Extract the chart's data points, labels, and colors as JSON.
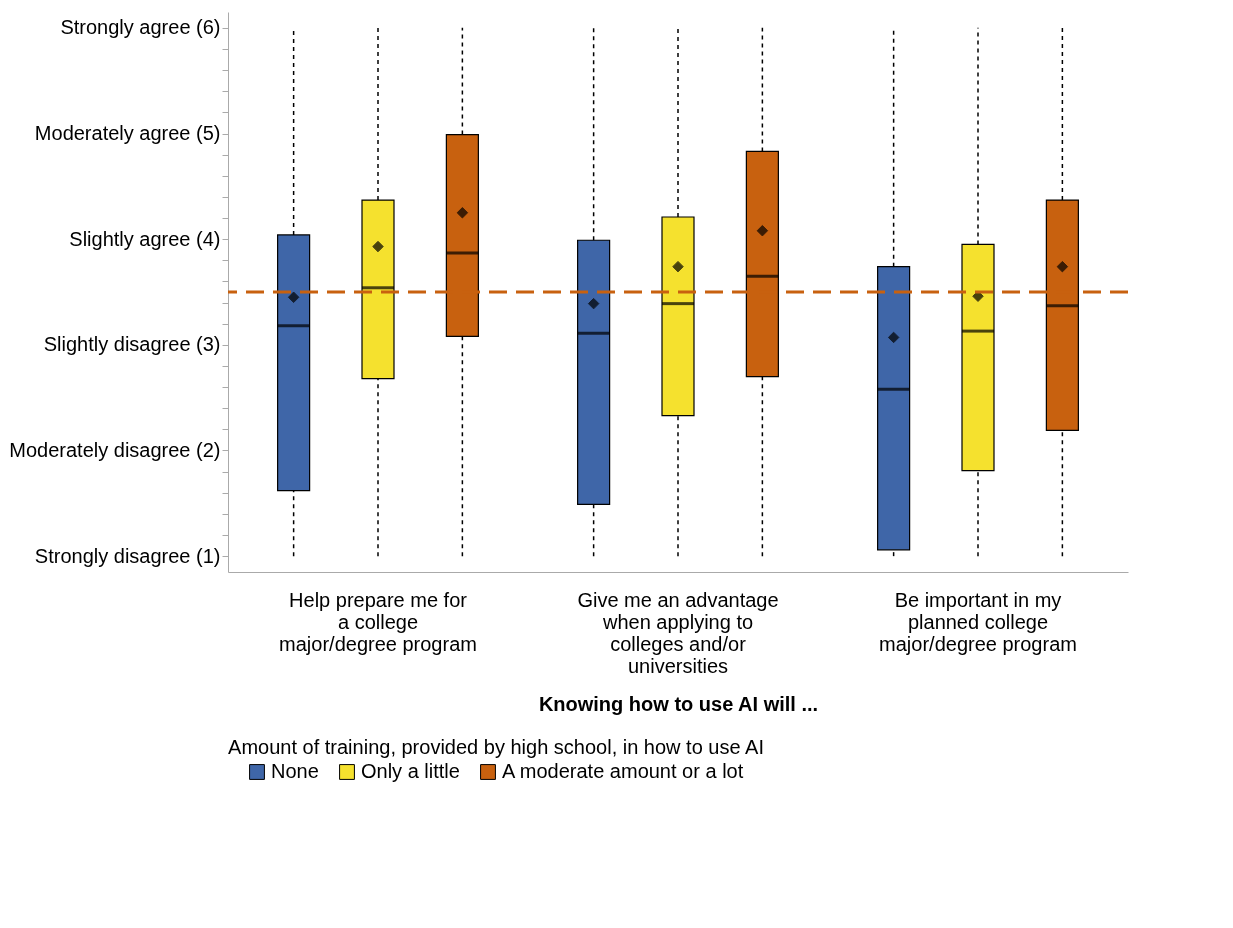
{
  "chart_data": {
    "type": "box",
    "xlabel": "Knowing how to use AI will ...",
    "legend_title": "Amount of training, provided by high school, in how to use AI",
    "categories": [
      "Help prepare me for a college major/degree program",
      "Give me an advantage when applying to colleges and/or universities",
      "Be important in my planned college major/degree program"
    ],
    "ylim": [
      0.85,
      6.15
    ],
    "yticks": [
      {
        "value": 1,
        "label": "Strongly disagree (1)"
      },
      {
        "value": 1.2,
        "label": null
      },
      {
        "value": 1.4,
        "label": null
      },
      {
        "value": 1.6,
        "label": null
      },
      {
        "value": 1.8,
        "label": null
      },
      {
        "value": 2,
        "label": "Moderately disagree (2)"
      },
      {
        "value": 2.2,
        "label": null
      },
      {
        "value": 2.4,
        "label": null
      },
      {
        "value": 2.6,
        "label": null
      },
      {
        "value": 2.8,
        "label": null
      },
      {
        "value": 3,
        "label": "Slightly disagree (3)"
      },
      {
        "value": 3.2,
        "label": null
      },
      {
        "value": 3.4,
        "label": null
      },
      {
        "value": 3.6,
        "label": null
      },
      {
        "value": 3.8,
        "label": null
      },
      {
        "value": 4,
        "label": "Slightly agree (4)"
      },
      {
        "value": 4.2,
        "label": null
      },
      {
        "value": 4.4,
        "label": null
      },
      {
        "value": 4.6,
        "label": null
      },
      {
        "value": 4.8,
        "label": null
      },
      {
        "value": 5,
        "label": "Moderately agree (5)"
      },
      {
        "value": 5.2,
        "label": null
      },
      {
        "value": 5.4,
        "label": null
      },
      {
        "value": 5.6,
        "label": null
      },
      {
        "value": 5.8,
        "label": null
      },
      {
        "value": 6,
        "label": "Strongly agree (6)"
      }
    ],
    "grid": false,
    "legend": "bottom",
    "marker": "diamond",
    "ref_lines": [
      {
        "axis": "y",
        "value": 3.5,
        "label": null,
        "color": "#c8610f",
        "line_style": "dashed"
      }
    ],
    "series": [
      {
        "name": "None",
        "color": "#3f66a8",
        "boxes": [
          {
            "low": 1,
            "q1": 1.62,
            "median": 3.18,
            "q3": 4.04,
            "high": 6,
            "mean": 3.45
          },
          {
            "low": 1,
            "q1": 1.49,
            "median": 3.11,
            "q3": 3.99,
            "high": 6,
            "mean": 3.39
          },
          {
            "low": 1,
            "q1": 1.06,
            "median": 2.58,
            "q3": 3.74,
            "high": 6,
            "mean": 3.07
          }
        ]
      },
      {
        "name": "Only a little",
        "color": "#f5e12e",
        "boxes": [
          {
            "low": 1,
            "q1": 2.68,
            "median": 3.54,
            "q3": 4.37,
            "high": 6,
            "mean": 3.93
          },
          {
            "low": 1,
            "q1": 2.33,
            "median": 3.39,
            "q3": 4.21,
            "high": 6,
            "mean": 3.74
          },
          {
            "low": 1,
            "q1": 1.81,
            "median": 3.13,
            "q3": 3.95,
            "high": 6,
            "mean": 3.46
          }
        ]
      },
      {
        "name": "A moderate amount or a lot",
        "color": "#c8610f",
        "boxes": [
          {
            "low": 1,
            "q1": 3.08,
            "median": 3.87,
            "q3": 4.99,
            "high": 6,
            "mean": 4.25
          },
          {
            "low": 1,
            "q1": 2.7,
            "median": 3.65,
            "q3": 4.83,
            "high": 6,
            "mean": 4.08
          },
          {
            "low": 1,
            "q1": 2.19,
            "median": 3.37,
            "q3": 4.37,
            "high": 6,
            "mean": 3.74
          }
        ]
      }
    ]
  }
}
